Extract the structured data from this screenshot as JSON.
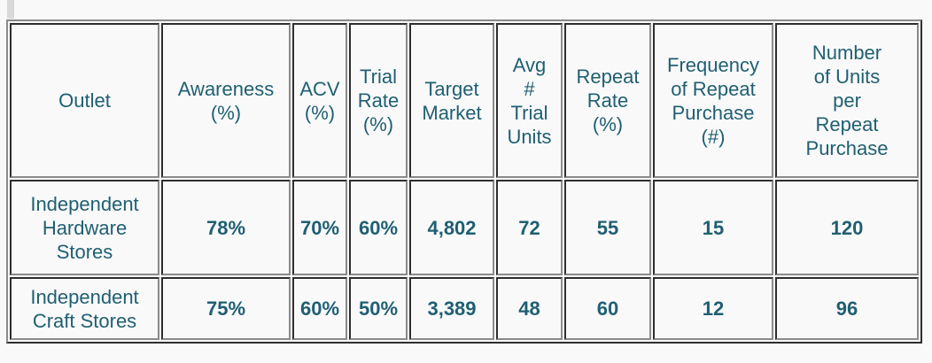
{
  "page": {
    "background_color": "#f9f9f9"
  },
  "scrollbar": {
    "color": "#d9d9d9"
  },
  "table": {
    "text_color": "#1f5f72",
    "cell_background": "#f9f9f9",
    "border_dark": "#2e2e2e",
    "border_light": "#8a8a8a",
    "columns": [
      {
        "key": "outlet",
        "label": "Outlet"
      },
      {
        "key": "awareness",
        "label": "Awareness\n(%)"
      },
      {
        "key": "acv",
        "label": "ACV\n(%)"
      },
      {
        "key": "trial_rate",
        "label": "Trial\nRate\n(%)"
      },
      {
        "key": "target_market",
        "label": "Target\nMarket"
      },
      {
        "key": "avg_trial_units",
        "label": "Avg\n#\nTrial\nUnits"
      },
      {
        "key": "repeat_rate",
        "label": "Repeat\nRate\n(%)"
      },
      {
        "key": "freq_repeat_purchase",
        "label": "Frequency\nof Repeat\nPurchase\n(#)"
      },
      {
        "key": "units_per_repeat_purchase",
        "label": "Number\nof Units\nper\nRepeat\nPurchase"
      }
    ],
    "rows": [
      {
        "outlet": "Independent\nHardware\nStores",
        "awareness": "78%",
        "acv": "70%",
        "trial_rate": "60%",
        "target_market": "4,802",
        "avg_trial_units": "72",
        "repeat_rate": "55",
        "freq_repeat_purchase": "15",
        "units_per_repeat_purchase": "120"
      },
      {
        "outlet": "Independent\nCraft Stores",
        "awareness": "75%",
        "acv": "60%",
        "trial_rate": "50%",
        "target_market": "3,389",
        "avg_trial_units": "48",
        "repeat_rate": "60",
        "freq_repeat_purchase": "12",
        "units_per_repeat_purchase": "96"
      }
    ]
  },
  "chart_data": {
    "type": "table",
    "columns": [
      "Outlet",
      "Awareness (%)",
      "ACV (%)",
      "Trial Rate (%)",
      "Target Market",
      "Avg # Trial Units",
      "Repeat Rate (%)",
      "Frequency of Repeat Purchase (#)",
      "Number of Units per Repeat Purchase"
    ],
    "rows": [
      [
        "Independent Hardware Stores",
        "78%",
        "70%",
        "60%",
        "4,802",
        "72",
        "55",
        "15",
        "120"
      ],
      [
        "Independent Craft Stores",
        "75%",
        "60%",
        "50%",
        "3,389",
        "48",
        "60",
        "12",
        "96"
      ]
    ]
  }
}
